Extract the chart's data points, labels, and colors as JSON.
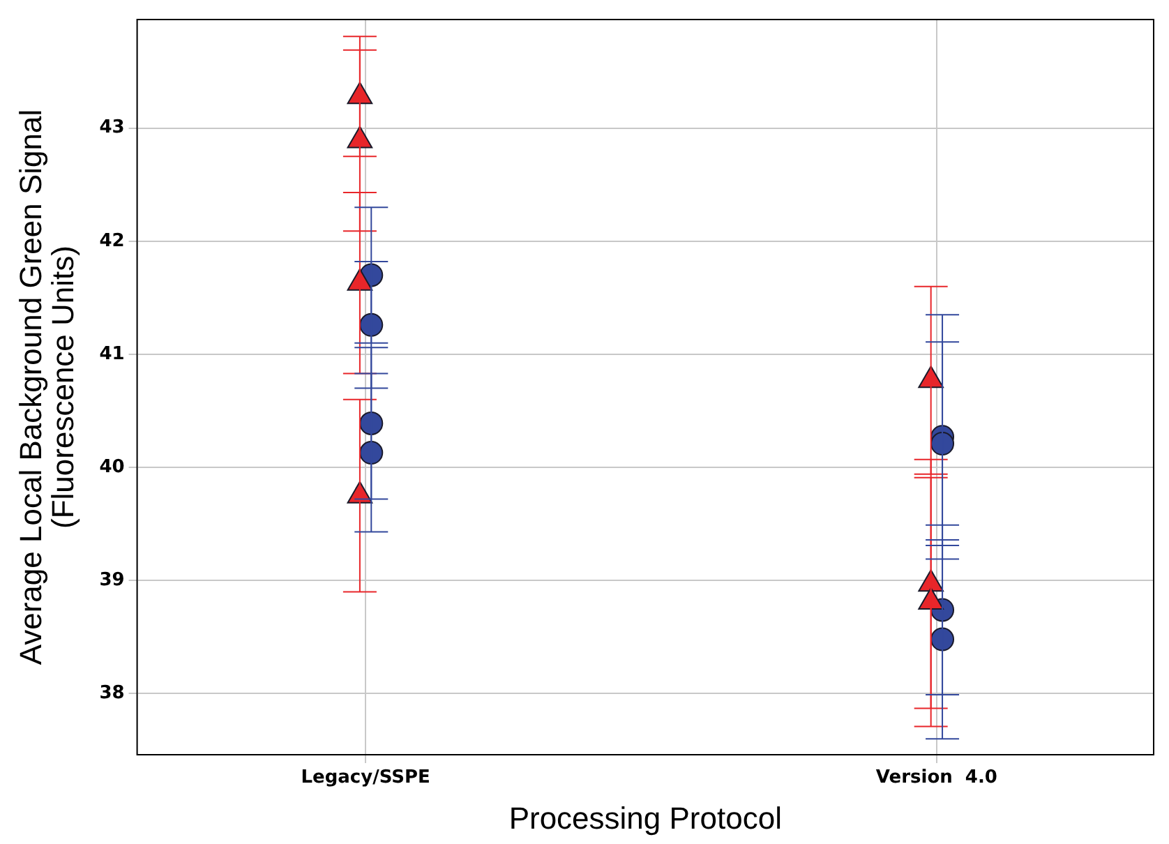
{
  "chart_data": {
    "type": "scatter",
    "xlabel": "Processing Protocol",
    "ylabel": "Average Local Background Green Signal\n(Fluorescence Units)",
    "categories": [
      "Legacy/SSPE",
      "Version  4.0"
    ],
    "ylim": [
      37.46,
      43.96
    ],
    "yticks": [
      38,
      39,
      40,
      41,
      42,
      43
    ],
    "grid": true,
    "legend": false,
    "series": [
      {
        "color": "#e8262a",
        "marker": "triangle",
        "x": [
          "Legacy/SSPE",
          "Legacy/SSPE",
          "Legacy/SSPE",
          "Legacy/SSPE",
          "Version  4.0",
          "Version  4.0",
          "Version  4.0"
        ],
        "values": [
          43.28,
          42.89,
          41.63,
          39.75,
          40.77,
          38.97,
          38.81
        ],
        "errors": [
          0.53,
          0.8,
          0.8,
          0.85,
          0.83,
          1.1,
          1.1
        ]
      },
      {
        "color": "#33489c",
        "marker": "circle",
        "x": [
          "Legacy/SSPE",
          "Legacy/SSPE",
          "Legacy/SSPE",
          "Legacy/SSPE",
          "Version  4.0",
          "Version  4.0",
          "Version  4.0",
          "Version  4.0"
        ],
        "values": [
          41.7,
          41.26,
          40.39,
          40.13,
          40.27,
          40.21,
          38.74,
          38.48
        ],
        "errors": [
          0.6,
          0.56,
          0.67,
          0.7,
          1.08,
          0.9,
          0.75,
          0.88
        ]
      }
    ]
  }
}
